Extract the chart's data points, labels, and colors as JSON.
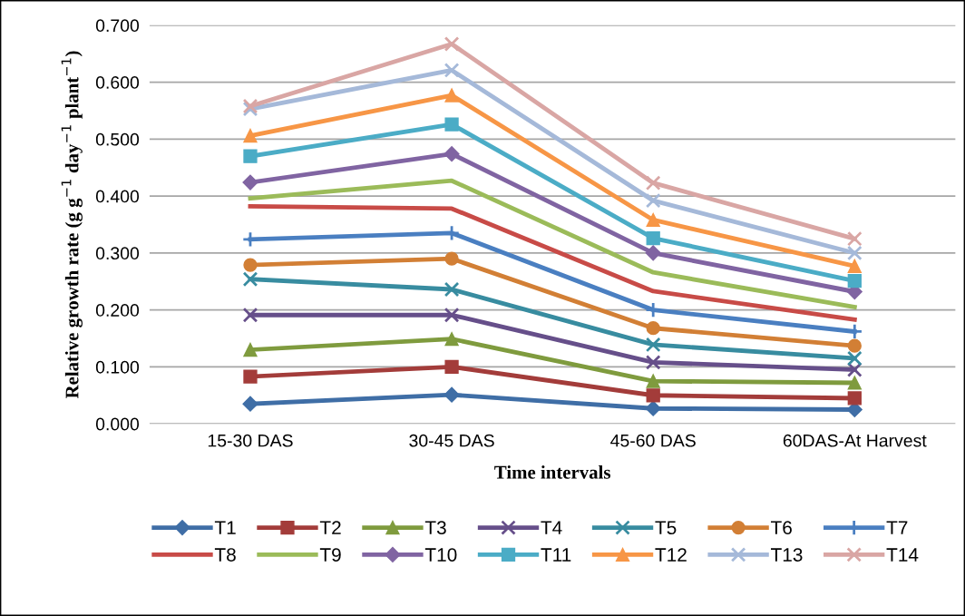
{
  "chart_data": {
    "type": "line",
    "xlabel": "Time intervals",
    "ylabel": "Relative growth rate (g g$^{−1}$ day$^{−1}$ plant$^{−1}$)",
    "categories": [
      "15-30 DAS",
      "30-45 DAS",
      "45-60 DAS",
      "60DAS-At Harvest"
    ],
    "ylim": [
      0,
      0.7
    ],
    "yticks": [
      {
        "value": 0,
        "label": "0.000"
      },
      {
        "value": 0.1,
        "label": "0.100"
      },
      {
        "value": 0.2,
        "label": "0.200"
      },
      {
        "value": 0.3,
        "label": "0.300"
      },
      {
        "value": 0.4,
        "label": "0.400"
      },
      {
        "value": 0.5,
        "label": "0.500"
      },
      {
        "value": 0.6,
        "label": "0.600"
      },
      {
        "value": 0.7,
        "label": "0.700"
      }
    ],
    "grid": "y",
    "legend": "bottom",
    "line_style": "solid",
    "series": [
      {
        "name": "T1",
        "color": "#3f6ea6",
        "marker": "diamond",
        "values": [
          0.035,
          0.051,
          0.027,
          0.025
        ]
      },
      {
        "name": "T2",
        "color": "#a33c3a",
        "marker": "square",
        "values": [
          0.083,
          0.1,
          0.05,
          0.045
        ]
      },
      {
        "name": "T3",
        "color": "#7f9b3e",
        "marker": "triangle",
        "values": [
          0.13,
          0.149,
          0.075,
          0.072
        ]
      },
      {
        "name": "T4",
        "color": "#664f8a",
        "marker": "cross",
        "values": [
          0.191,
          0.191,
          0.108,
          0.095
        ]
      },
      {
        "name": "T5",
        "color": "#388ca0",
        "marker": "cross",
        "values": [
          0.254,
          0.236,
          0.139,
          0.115
        ]
      },
      {
        "name": "T6",
        "color": "#d27f35",
        "marker": "circle",
        "values": [
          0.279,
          0.29,
          0.168,
          0.137
        ]
      },
      {
        "name": "T7",
        "color": "#4a7fc1",
        "marker": "plus",
        "values": [
          0.324,
          0.335,
          0.2,
          0.162
        ]
      },
      {
        "name": "T8",
        "color": "#c84b47",
        "marker": "none",
        "values": [
          0.382,
          0.378,
          0.233,
          0.183
        ]
      },
      {
        "name": "T9",
        "color": "#9bbb59",
        "marker": "none",
        "values": [
          0.396,
          0.427,
          0.266,
          0.205
        ]
      },
      {
        "name": "T10",
        "color": "#8064a2",
        "marker": "diamond",
        "values": [
          0.424,
          0.474,
          0.3,
          0.232
        ]
      },
      {
        "name": "T11",
        "color": "#4bacc6",
        "marker": "square",
        "values": [
          0.47,
          0.526,
          0.326,
          0.251
        ]
      },
      {
        "name": "T12",
        "color": "#f79646",
        "marker": "triangle",
        "values": [
          0.506,
          0.577,
          0.358,
          0.277
        ]
      },
      {
        "name": "T13",
        "color": "#a5b9d9",
        "marker": "cross",
        "values": [
          0.553,
          0.621,
          0.392,
          0.3
        ]
      },
      {
        "name": "T14",
        "color": "#d9a6a4",
        "marker": "cross",
        "values": [
          0.558,
          0.667,
          0.423,
          0.325
        ]
      }
    ]
  }
}
